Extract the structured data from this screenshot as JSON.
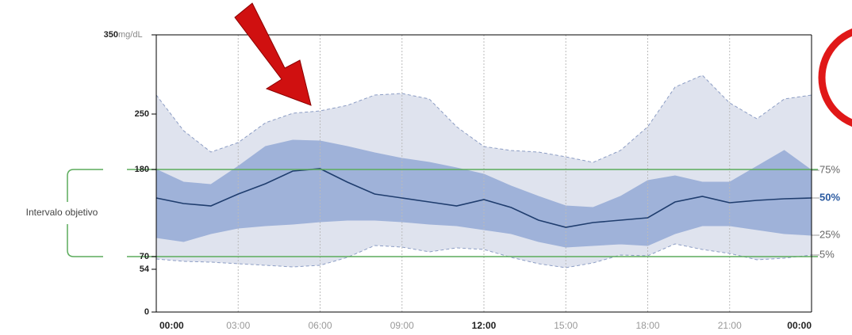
{
  "chart_data": {
    "type": "percentile-band",
    "y_unit": "mg/dL",
    "x": [
      0,
      1,
      2,
      3,
      4,
      5,
      6,
      7,
      8,
      9,
      10,
      11,
      12,
      13,
      14,
      15,
      16,
      17,
      18,
      19,
      20,
      21,
      22,
      23,
      24
    ],
    "series": [
      {
        "color": "#8c9dc4",
        "values": [
          274,
          229,
          202,
          214,
          239,
          251,
          254,
          261,
          274,
          276,
          269,
          234,
          209,
          204,
          202,
          196,
          189,
          204,
          234,
          284,
          299,
          264,
          244,
          269,
          274
        ]
      },
      {
        "name": "75%",
        "color": "#9fb2d9",
        "values": [
          180,
          164,
          161,
          184,
          209,
          217,
          216,
          209,
          201,
          194,
          189,
          182,
          174,
          159,
          146,
          134,
          132,
          146,
          166,
          172,
          164,
          164,
          184,
          204,
          179
        ]
      },
      {
        "name": "50%",
        "color": "#1f3d6e",
        "values": [
          144,
          137,
          134,
          149,
          162,
          178,
          181,
          164,
          149,
          144,
          139,
          134,
          142,
          132,
          116,
          107,
          113,
          116,
          119,
          139,
          146,
          138,
          141,
          143,
          144
        ]
      },
      {
        "name": "25%",
        "color": "#9fb2d9",
        "values": [
          94,
          89,
          99,
          106,
          109,
          111,
          114,
          116,
          116,
          114,
          111,
          109,
          104,
          99,
          89,
          82,
          84,
          86,
          84,
          99,
          109,
          109,
          104,
          99,
          97
        ]
      },
      {
        "name": "5%",
        "color": "#8c9dc4",
        "values": [
          67,
          64,
          63,
          61,
          59,
          57,
          59,
          69,
          84,
          82,
          76,
          81,
          79,
          69,
          61,
          56,
          62,
          72,
          71,
          86,
          79,
          74,
          66,
          68,
          72
        ]
      }
    ],
    "target_range": {
      "label": "Intervalo objetivo",
      "low": 70,
      "high": 180,
      "color": "#5cac5c"
    },
    "xlim": [
      0,
      24
    ],
    "xticks": [
      {
        "value": 0,
        "label": "00:00"
      },
      {
        "value": 3,
        "label": "03:00"
      },
      {
        "value": 6,
        "label": "06:00"
      },
      {
        "value": 9,
        "label": "09:00"
      },
      {
        "value": 12,
        "label": "12:00"
      },
      {
        "value": 15,
        "label": "15:00"
      },
      {
        "value": 18,
        "label": "18:00"
      },
      {
        "value": 21,
        "label": "21:00"
      },
      {
        "value": 24,
        "label": "00:00"
      }
    ],
    "ylim": [
      0,
      350
    ],
    "yticks": [
      0,
      54,
      70,
      180,
      250,
      350
    ],
    "grid": true
  }
}
